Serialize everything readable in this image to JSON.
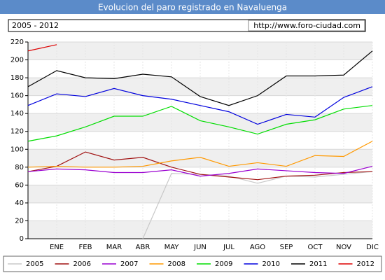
{
  "chart_data": {
    "type": "line",
    "title": "Evolucion del paro registrado en Navaluenga",
    "subtitle": "2005 - 2012",
    "source": "http://www.foro-ciudad.com",
    "categories": [
      null,
      "ENE",
      "FEB",
      "MAR",
      "ABR",
      "MAY",
      "JUN",
      "JUL",
      "AGO",
      "SEP",
      "OCT",
      "NOV",
      "DIC"
    ],
    "series": [
      {
        "name": "2005",
        "color": "#c8c8c8",
        "values": [
          null,
          null,
          null,
          null,
          0,
          73,
          72,
          70,
          62,
          70,
          69,
          72,
          75
        ]
      },
      {
        "name": "2006",
        "color": "#a01010",
        "values": [
          75,
          81,
          97,
          88,
          91,
          80,
          72,
          69,
          66,
          70,
          71,
          74,
          75
        ]
      },
      {
        "name": "2007",
        "color": "#9a00d0",
        "values": [
          75,
          78,
          77,
          74,
          74,
          77,
          70,
          73,
          78,
          76,
          74,
          73,
          81
        ]
      },
      {
        "name": "2008",
        "color": "#ff9900",
        "values": [
          80,
          81,
          80,
          80,
          81,
          87,
          91,
          81,
          85,
          81,
          93,
          92,
          109
        ]
      },
      {
        "name": "2009",
        "color": "#00dd00",
        "values": [
          109,
          115,
          125,
          137,
          137,
          148,
          132,
          125,
          117,
          128,
          133,
          145,
          149
        ]
      },
      {
        "name": "2010",
        "color": "#0000dd",
        "values": [
          149,
          162,
          159,
          168,
          160,
          156,
          149,
          142,
          128,
          139,
          136,
          158,
          170
        ]
      },
      {
        "name": "2011",
        "color": "#000000",
        "values": [
          170,
          188,
          180,
          179,
          184,
          181,
          159,
          149,
          160,
          182,
          182,
          183,
          210
        ]
      },
      {
        "name": "2012",
        "color": "#dd0000",
        "values": [
          210,
          217,
          null,
          null,
          null,
          null,
          null,
          null,
          null,
          null,
          null,
          null,
          null
        ]
      }
    ],
    "ylim": [
      0,
      220
    ],
    "yticks": [
      0,
      20,
      40,
      60,
      80,
      100,
      120,
      140,
      160,
      180,
      200,
      220
    ],
    "grid": true
  }
}
